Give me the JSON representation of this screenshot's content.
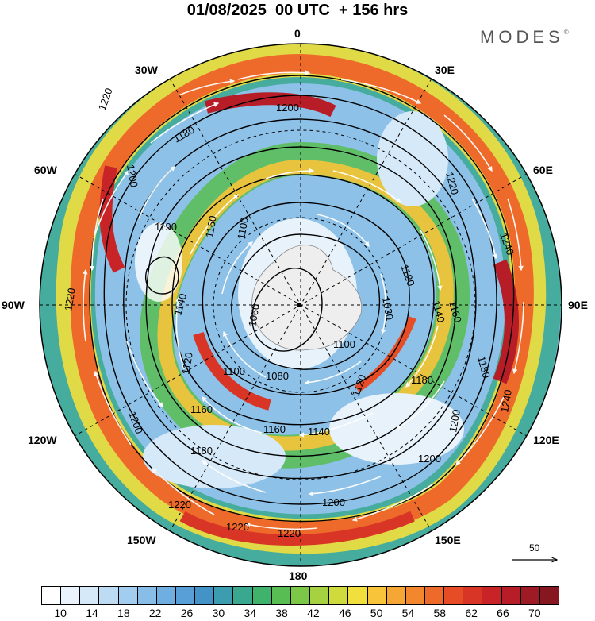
{
  "title": "01/08/2025  00 UTC  + 156 hrs",
  "brand": "MODES",
  "brand_mark": "©",
  "longitude_labels": {
    "lon_0": "0",
    "lon_30e": "30E",
    "lon_60e": "60E",
    "lon_90e": "90E",
    "lon_120e": "120E",
    "lon_150e": "150E",
    "lon_180": "180",
    "lon_150w": "150W",
    "lon_120w": "120W",
    "lon_90w": "90W",
    "lon_60w": "60W",
    "lon_30w": "30W"
  },
  "vector_legend": {
    "value": "50"
  },
  "contours": [
    "1060",
    "1080",
    "1100",
    "1100",
    "1100",
    "1120",
    "1120",
    "1120",
    "1140",
    "1140",
    "1140",
    "1160",
    "1160",
    "1160",
    "1160",
    "1180",
    "1180",
    "1180",
    "1180",
    "1190",
    "1200",
    "1200",
    "1200",
    "1200",
    "1200",
    "1200",
    "1220",
    "1220",
    "1220",
    "1220",
    "1220",
    "1220",
    "1240",
    "1240",
    "1030"
  ],
  "colorbar": {
    "ticks": [
      "10",
      "14",
      "18",
      "22",
      "26",
      "30",
      "34",
      "38",
      "42",
      "46",
      "50",
      "54",
      "58",
      "62",
      "66",
      "70"
    ],
    "colors": [
      "#ffffff",
      "#eaf3fb",
      "#d6e9f8",
      "#bddcf3",
      "#a3cdee",
      "#87bde7",
      "#6eaee0",
      "#579fd6",
      "#4393c8",
      "#3c9db0",
      "#3aa88f",
      "#3fb36c",
      "#58bd52",
      "#7cc747",
      "#a6d140",
      "#cfdb3c",
      "#f0df3c",
      "#f7c43a",
      "#f6a634",
      "#f3872e",
      "#ee6a2a",
      "#e64d27",
      "#d93526",
      "#c82427",
      "#b61d27",
      "#9e1a24",
      "#861620"
    ]
  }
}
